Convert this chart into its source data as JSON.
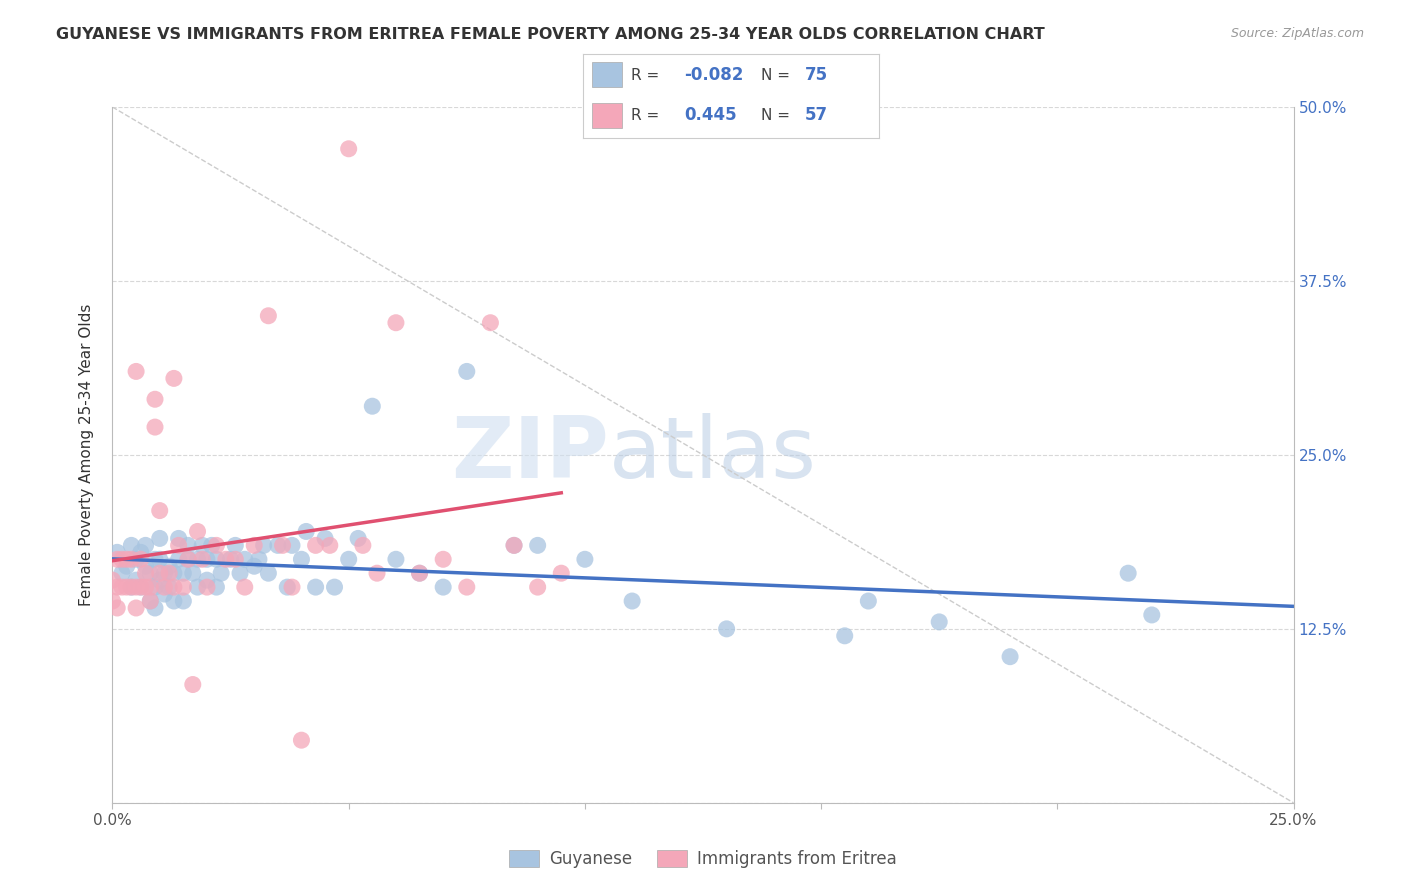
{
  "title": "GUYANESE VS IMMIGRANTS FROM ERITREA FEMALE POVERTY AMONG 25-34 YEAR OLDS CORRELATION CHART",
  "source": "Source: ZipAtlas.com",
  "ylabel": "Female Poverty Among 25-34 Year Olds",
  "xlim": [
    0,
    0.25
  ],
  "ylim": [
    0,
    0.5
  ],
  "xticks": [
    0.0,
    0.05,
    0.1,
    0.15,
    0.2,
    0.25
  ],
  "yticks": [
    0.0,
    0.125,
    0.25,
    0.375,
    0.5
  ],
  "xtick_labels": [
    "0.0%",
    "",
    "",
    "",
    "",
    "25.0%"
  ],
  "ytick_labels_right": [
    "",
    "12.5%",
    "25.0%",
    "37.5%",
    "50.0%"
  ],
  "legend_r_blue": "-0.082",
  "legend_n_blue": "75",
  "legend_r_pink": "0.445",
  "legend_n_pink": "57",
  "legend_label_blue": "Guyanese",
  "legend_label_pink": "Immigrants from Eritrea",
  "blue_color": "#a8c4e0",
  "pink_color": "#f4a7b9",
  "blue_line_color": "#4472c4",
  "pink_line_color": "#e05070",
  "watermark_zip": "ZIP",
  "watermark_atlas": "atlas",
  "blue_dots_x": [
    0.001,
    0.002,
    0.003,
    0.004,
    0.004,
    0.005,
    0.005,
    0.006,
    0.006,
    0.007,
    0.007,
    0.008,
    0.008,
    0.009,
    0.009,
    0.009,
    0.01,
    0.01,
    0.01,
    0.011,
    0.011,
    0.012,
    0.012,
    0.013,
    0.013,
    0.014,
    0.014,
    0.015,
    0.015,
    0.016,
    0.016,
    0.017,
    0.018,
    0.018,
    0.019,
    0.02,
    0.02,
    0.021,
    0.022,
    0.022,
    0.023,
    0.025,
    0.026,
    0.027,
    0.028,
    0.03,
    0.031,
    0.032,
    0.033,
    0.035,
    0.037,
    0.038,
    0.04,
    0.041,
    0.043,
    0.045,
    0.047,
    0.05,
    0.052,
    0.055,
    0.06,
    0.065,
    0.07,
    0.075,
    0.085,
    0.09,
    0.1,
    0.11,
    0.13,
    0.155,
    0.16,
    0.175,
    0.19,
    0.215,
    0.22
  ],
  "blue_dots_y": [
    0.18,
    0.165,
    0.17,
    0.155,
    0.185,
    0.16,
    0.175,
    0.155,
    0.18,
    0.17,
    0.185,
    0.145,
    0.165,
    0.14,
    0.155,
    0.175,
    0.16,
    0.175,
    0.19,
    0.15,
    0.165,
    0.155,
    0.17,
    0.145,
    0.165,
    0.175,
    0.19,
    0.145,
    0.165,
    0.175,
    0.185,
    0.165,
    0.155,
    0.175,
    0.185,
    0.16,
    0.175,
    0.185,
    0.155,
    0.175,
    0.165,
    0.175,
    0.185,
    0.165,
    0.175,
    0.17,
    0.175,
    0.185,
    0.165,
    0.185,
    0.155,
    0.185,
    0.175,
    0.195,
    0.155,
    0.19,
    0.155,
    0.175,
    0.19,
    0.285,
    0.175,
    0.165,
    0.155,
    0.31,
    0.185,
    0.185,
    0.175,
    0.145,
    0.125,
    0.12,
    0.145,
    0.13,
    0.105,
    0.165,
    0.135
  ],
  "pink_dots_x": [
    0.0,
    0.0,
    0.001,
    0.001,
    0.001,
    0.002,
    0.002,
    0.003,
    0.003,
    0.004,
    0.004,
    0.005,
    0.005,
    0.005,
    0.006,
    0.006,
    0.007,
    0.007,
    0.008,
    0.008,
    0.009,
    0.009,
    0.01,
    0.01,
    0.011,
    0.012,
    0.013,
    0.013,
    0.014,
    0.015,
    0.016,
    0.017,
    0.018,
    0.019,
    0.02,
    0.022,
    0.024,
    0.026,
    0.028,
    0.03,
    0.033,
    0.036,
    0.038,
    0.04,
    0.043,
    0.046,
    0.05,
    0.053,
    0.056,
    0.06,
    0.065,
    0.07,
    0.075,
    0.08,
    0.085,
    0.09,
    0.095
  ],
  "pink_dots_y": [
    0.145,
    0.16,
    0.14,
    0.155,
    0.175,
    0.155,
    0.175,
    0.155,
    0.175,
    0.155,
    0.175,
    0.14,
    0.155,
    0.31,
    0.155,
    0.175,
    0.155,
    0.165,
    0.145,
    0.155,
    0.27,
    0.29,
    0.165,
    0.21,
    0.155,
    0.165,
    0.155,
    0.305,
    0.185,
    0.155,
    0.175,
    0.085,
    0.195,
    0.175,
    0.155,
    0.185,
    0.175,
    0.175,
    0.155,
    0.185,
    0.35,
    0.185,
    0.155,
    0.045,
    0.185,
    0.185,
    0.47,
    0.185,
    0.165,
    0.345,
    0.165,
    0.175,
    0.155,
    0.345,
    0.185,
    0.155,
    0.165
  ]
}
